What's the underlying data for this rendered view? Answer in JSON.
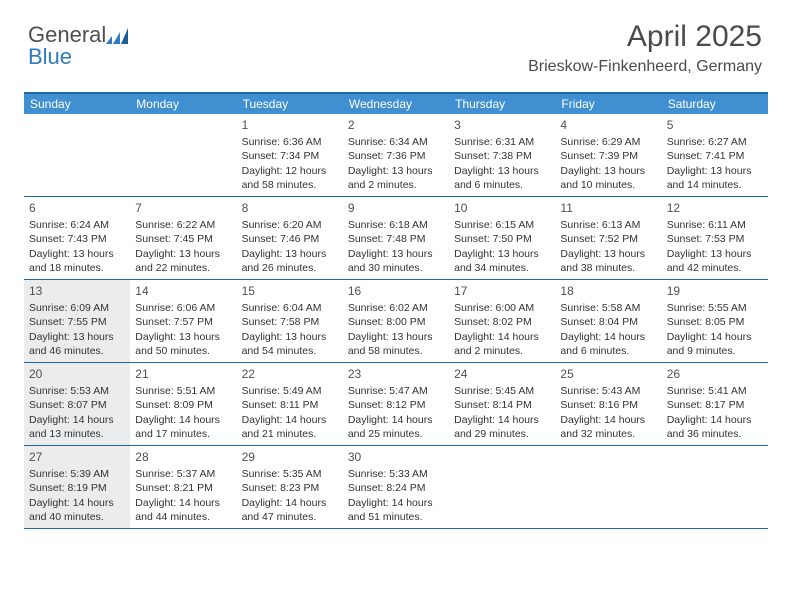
{
  "logo": {
    "text1": "General",
    "text2": "Blue"
  },
  "header": {
    "month": "April 2025",
    "location": "Brieskow-Finkenheerd, Germany"
  },
  "colors": {
    "header_bg": "#3f8fd1",
    "border": "#1c6aa9",
    "shade": "#ececec",
    "text": "#333333",
    "logo_gray": "#505050",
    "logo_blue": "#2f7ac0"
  },
  "days": [
    "Sunday",
    "Monday",
    "Tuesday",
    "Wednesday",
    "Thursday",
    "Friday",
    "Saturday"
  ],
  "weeks": [
    [
      {
        "n": "",
        "sr": "",
        "ss": "",
        "dl": "",
        "shade": false
      },
      {
        "n": "",
        "sr": "",
        "ss": "",
        "dl": "",
        "shade": false
      },
      {
        "n": "1",
        "sr": "Sunrise: 6:36 AM",
        "ss": "Sunset: 7:34 PM",
        "dl": "Daylight: 12 hours and 58 minutes.",
        "shade": false
      },
      {
        "n": "2",
        "sr": "Sunrise: 6:34 AM",
        "ss": "Sunset: 7:36 PM",
        "dl": "Daylight: 13 hours and 2 minutes.",
        "shade": false
      },
      {
        "n": "3",
        "sr": "Sunrise: 6:31 AM",
        "ss": "Sunset: 7:38 PM",
        "dl": "Daylight: 13 hours and 6 minutes.",
        "shade": false
      },
      {
        "n": "4",
        "sr": "Sunrise: 6:29 AM",
        "ss": "Sunset: 7:39 PM",
        "dl": "Daylight: 13 hours and 10 minutes.",
        "shade": false
      },
      {
        "n": "5",
        "sr": "Sunrise: 6:27 AM",
        "ss": "Sunset: 7:41 PM",
        "dl": "Daylight: 13 hours and 14 minutes.",
        "shade": false
      }
    ],
    [
      {
        "n": "6",
        "sr": "Sunrise: 6:24 AM",
        "ss": "Sunset: 7:43 PM",
        "dl": "Daylight: 13 hours and 18 minutes.",
        "shade": false
      },
      {
        "n": "7",
        "sr": "Sunrise: 6:22 AM",
        "ss": "Sunset: 7:45 PM",
        "dl": "Daylight: 13 hours and 22 minutes.",
        "shade": false
      },
      {
        "n": "8",
        "sr": "Sunrise: 6:20 AM",
        "ss": "Sunset: 7:46 PM",
        "dl": "Daylight: 13 hours and 26 minutes.",
        "shade": false
      },
      {
        "n": "9",
        "sr": "Sunrise: 6:18 AM",
        "ss": "Sunset: 7:48 PM",
        "dl": "Daylight: 13 hours and 30 minutes.",
        "shade": false
      },
      {
        "n": "10",
        "sr": "Sunrise: 6:15 AM",
        "ss": "Sunset: 7:50 PM",
        "dl": "Daylight: 13 hours and 34 minutes.",
        "shade": false
      },
      {
        "n": "11",
        "sr": "Sunrise: 6:13 AM",
        "ss": "Sunset: 7:52 PM",
        "dl": "Daylight: 13 hours and 38 minutes.",
        "shade": false
      },
      {
        "n": "12",
        "sr": "Sunrise: 6:11 AM",
        "ss": "Sunset: 7:53 PM",
        "dl": "Daylight: 13 hours and 42 minutes.",
        "shade": false
      }
    ],
    [
      {
        "n": "13",
        "sr": "Sunrise: 6:09 AM",
        "ss": "Sunset: 7:55 PM",
        "dl": "Daylight: 13 hours and 46 minutes.",
        "shade": true
      },
      {
        "n": "14",
        "sr": "Sunrise: 6:06 AM",
        "ss": "Sunset: 7:57 PM",
        "dl": "Daylight: 13 hours and 50 minutes.",
        "shade": false
      },
      {
        "n": "15",
        "sr": "Sunrise: 6:04 AM",
        "ss": "Sunset: 7:58 PM",
        "dl": "Daylight: 13 hours and 54 minutes.",
        "shade": false
      },
      {
        "n": "16",
        "sr": "Sunrise: 6:02 AM",
        "ss": "Sunset: 8:00 PM",
        "dl": "Daylight: 13 hours and 58 minutes.",
        "shade": false
      },
      {
        "n": "17",
        "sr": "Sunrise: 6:00 AM",
        "ss": "Sunset: 8:02 PM",
        "dl": "Daylight: 14 hours and 2 minutes.",
        "shade": false
      },
      {
        "n": "18",
        "sr": "Sunrise: 5:58 AM",
        "ss": "Sunset: 8:04 PM",
        "dl": "Daylight: 14 hours and 6 minutes.",
        "shade": false
      },
      {
        "n": "19",
        "sr": "Sunrise: 5:55 AM",
        "ss": "Sunset: 8:05 PM",
        "dl": "Daylight: 14 hours and 9 minutes.",
        "shade": false
      }
    ],
    [
      {
        "n": "20",
        "sr": "Sunrise: 5:53 AM",
        "ss": "Sunset: 8:07 PM",
        "dl": "Daylight: 14 hours and 13 minutes.",
        "shade": true
      },
      {
        "n": "21",
        "sr": "Sunrise: 5:51 AM",
        "ss": "Sunset: 8:09 PM",
        "dl": "Daylight: 14 hours and 17 minutes.",
        "shade": false
      },
      {
        "n": "22",
        "sr": "Sunrise: 5:49 AM",
        "ss": "Sunset: 8:11 PM",
        "dl": "Daylight: 14 hours and 21 minutes.",
        "shade": false
      },
      {
        "n": "23",
        "sr": "Sunrise: 5:47 AM",
        "ss": "Sunset: 8:12 PM",
        "dl": "Daylight: 14 hours and 25 minutes.",
        "shade": false
      },
      {
        "n": "24",
        "sr": "Sunrise: 5:45 AM",
        "ss": "Sunset: 8:14 PM",
        "dl": "Daylight: 14 hours and 29 minutes.",
        "shade": false
      },
      {
        "n": "25",
        "sr": "Sunrise: 5:43 AM",
        "ss": "Sunset: 8:16 PM",
        "dl": "Daylight: 14 hours and 32 minutes.",
        "shade": false
      },
      {
        "n": "26",
        "sr": "Sunrise: 5:41 AM",
        "ss": "Sunset: 8:17 PM",
        "dl": "Daylight: 14 hours and 36 minutes.",
        "shade": false
      }
    ],
    [
      {
        "n": "27",
        "sr": "Sunrise: 5:39 AM",
        "ss": "Sunset: 8:19 PM",
        "dl": "Daylight: 14 hours and 40 minutes.",
        "shade": true
      },
      {
        "n": "28",
        "sr": "Sunrise: 5:37 AM",
        "ss": "Sunset: 8:21 PM",
        "dl": "Daylight: 14 hours and 44 minutes.",
        "shade": false
      },
      {
        "n": "29",
        "sr": "Sunrise: 5:35 AM",
        "ss": "Sunset: 8:23 PM",
        "dl": "Daylight: 14 hours and 47 minutes.",
        "shade": false
      },
      {
        "n": "30",
        "sr": "Sunrise: 5:33 AM",
        "ss": "Sunset: 8:24 PM",
        "dl": "Daylight: 14 hours and 51 minutes.",
        "shade": false
      },
      {
        "n": "",
        "sr": "",
        "ss": "",
        "dl": "",
        "shade": false
      },
      {
        "n": "",
        "sr": "",
        "ss": "",
        "dl": "",
        "shade": false
      },
      {
        "n": "",
        "sr": "",
        "ss": "",
        "dl": "",
        "shade": false
      }
    ]
  ]
}
